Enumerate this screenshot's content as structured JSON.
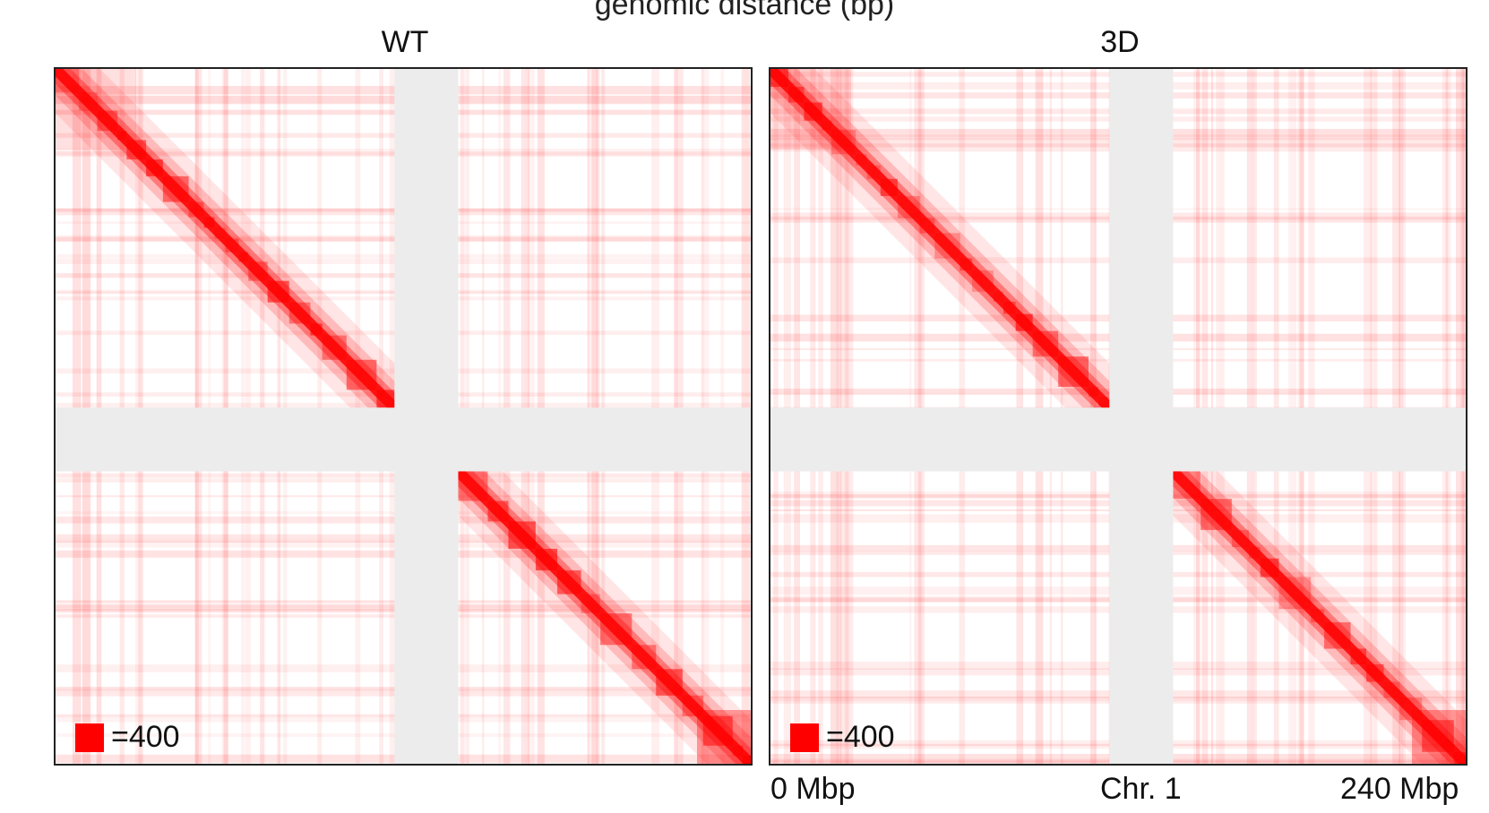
{
  "title": "genomic distance (bp)",
  "colors": {
    "contact": "#ff0000",
    "unmappable": "#ececec",
    "background": "#ffffff",
    "border": "#222222"
  },
  "chart_data": [
    {
      "type": "heatmap",
      "title": "WT",
      "legend": {
        "label": "=400",
        "value": 400,
        "color": "#ff0000",
        "placement": "bottom-left"
      },
      "x_axis": {
        "labels": [],
        "range_mbp": [
          0,
          240
        ]
      },
      "y_axis": {
        "labels": [],
        "range_mbp": [
          0,
          240
        ]
      },
      "unmappable_region_mbp": [
        117,
        139
      ]
    },
    {
      "type": "heatmap",
      "title": "3D",
      "legend": {
        "label": "=400",
        "value": 400,
        "color": "#ff0000",
        "placement": "bottom-left"
      },
      "x_axis": {
        "labels": [
          "0 Mbp",
          "Chr. 1",
          "240 Mbp"
        ],
        "range_mbp": [
          0,
          240
        ]
      },
      "y_axis": {
        "labels": [],
        "range_mbp": [
          0,
          240
        ]
      },
      "unmappable_region_mbp": [
        117,
        139
      ]
    }
  ]
}
